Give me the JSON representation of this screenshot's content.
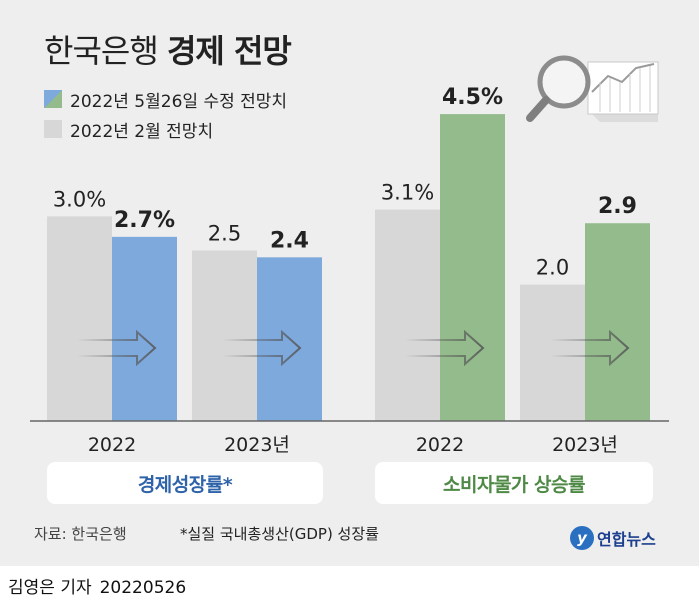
{
  "title": {
    "light": "한국은행",
    "bold": "경제 전망"
  },
  "legend": [
    {
      "label": "2022년 5월26일 수정 전망치",
      "colors": [
        "#7ea9dc",
        "#93bb8c"
      ]
    },
    {
      "label": "2022년 2월 전망치",
      "color": "#d7d7d7"
    }
  ],
  "colors": {
    "blue": "#7ea9dc",
    "green": "#93bb8c",
    "gray": "#d7d7d7",
    "background": "#eeeeee",
    "label_blue": "#2f63a9",
    "label_green": "#4e8a45"
  },
  "chart_data": {
    "type": "bar",
    "groups": [
      {
        "name": "경제성장률*",
        "categories": [
          "2022",
          "2023년"
        ],
        "series": [
          {
            "name": "2022년 2월 전망치",
            "values": [
              3.0,
              2.5
            ],
            "labels": [
              "3.0%",
              "2.5"
            ]
          },
          {
            "name": "2022년 5월26일 수정 전망치",
            "values": [
              2.7,
              2.4
            ],
            "labels": [
              "2.7%",
              "2.4"
            ]
          }
        ]
      },
      {
        "name": "소비자물가 상승률",
        "categories": [
          "2022",
          "2023년"
        ],
        "series": [
          {
            "name": "2022년 2월 전망치",
            "values": [
              3.1,
              2.0
            ],
            "labels": [
              "3.1%",
              "2.0"
            ]
          },
          {
            "name": "2022년 5월26일 수정 전망치",
            "values": [
              4.5,
              2.9
            ],
            "labels": [
              "4.5%",
              "2.9"
            ]
          }
        ]
      }
    ],
    "ylim": [
      0,
      5.0
    ],
    "grid": false,
    "legend_position": "top-left",
    "decoration_icon": "magnifier-chart-icon",
    "arrow_icon": "right-arrow-icon"
  },
  "footer": {
    "source": "자료: 한국은행",
    "note": "*실질 국내총생산(GDP) 성장률",
    "brand": "연합뉴스",
    "brand_logo_letter": "y"
  },
  "credit": {
    "author": "김영은 기자",
    "date": "20220526"
  }
}
